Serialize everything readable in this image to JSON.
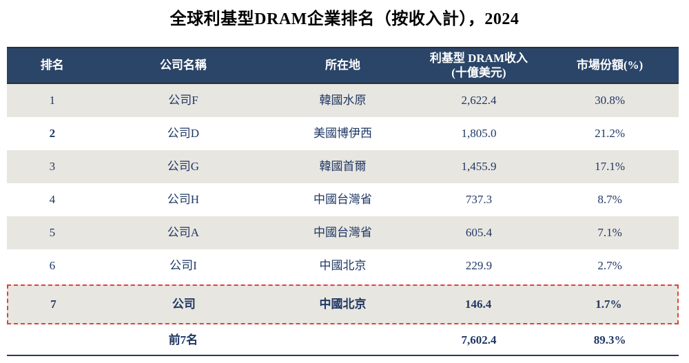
{
  "title": "全球利基型DRAM企業排名（按收入計），2024",
  "table": {
    "columns": [
      {
        "label": "排名"
      },
      {
        "label": "公司名稱"
      },
      {
        "label": "所在地"
      },
      {
        "label": "利基型 DRAM收入",
        "sub": "(十億美元)"
      },
      {
        "label": "市場份額(%)"
      }
    ],
    "rows": [
      {
        "rank": "1",
        "company": "公司F",
        "location": "韓國水原",
        "revenue": "2,622.4",
        "share": "30.8%"
      },
      {
        "rank": "2",
        "company": "公司D",
        "location": "美國博伊西",
        "revenue": "1,805.0",
        "share": "21.2%"
      },
      {
        "rank": "3",
        "company": "公司G",
        "location": "韓國首爾",
        "revenue": "1,455.9",
        "share": "17.1%"
      },
      {
        "rank": "4",
        "company": "公司H",
        "location": "中國台灣省",
        "revenue": "737.3",
        "share": "8.7%"
      },
      {
        "rank": "5",
        "company": "公司A",
        "location": "中國台灣省",
        "revenue": "605.4",
        "share": "7.1%"
      },
      {
        "rank": "6",
        "company": "公司I",
        "location": "中國北京",
        "revenue": "229.9",
        "share": "2.7%"
      },
      {
        "rank": "7",
        "company": "公司",
        "location": "中國北京",
        "revenue": "146.4",
        "share": "1.7%"
      }
    ],
    "footer": {
      "label": "前7名",
      "revenue": "7,602.4",
      "share": "89.3%"
    }
  },
  "colors": {
    "header_bg": "#2A4568",
    "header_text": "#FFFFFF",
    "body_text": "#1F3864",
    "row_alt_bg": "#E8E6E0",
    "highlight_border": "#E04038",
    "header_rule": "#2F2F2F",
    "bottom_rule": "#24395B"
  }
}
